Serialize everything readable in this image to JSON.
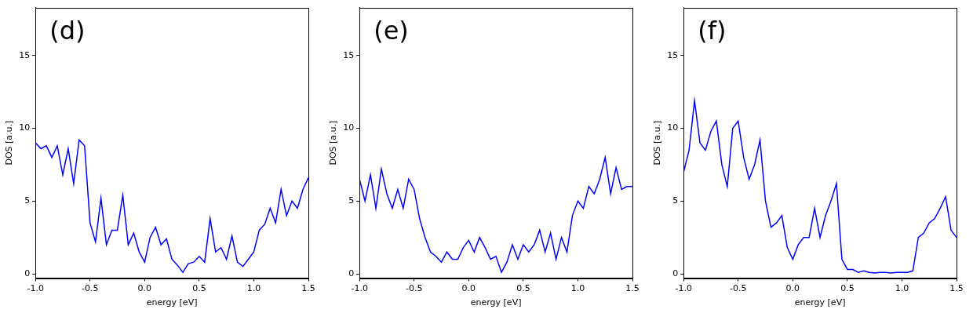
{
  "chart_data": [
    {
      "type": "line",
      "title": "(d)",
      "xlabel": "energy [eV]",
      "ylabel": "DOS [a.u.]",
      "color": "#0000ff",
      "x": [
        -1.0,
        -0.95,
        -0.9,
        -0.85,
        -0.8,
        -0.75,
        -0.7,
        -0.65,
        -0.6,
        -0.55,
        -0.5,
        -0.45,
        -0.4,
        -0.35,
        -0.3,
        -0.25,
        -0.2,
        -0.15,
        -0.1,
        -0.05,
        0.0,
        0.05,
        0.1,
        0.15,
        0.2,
        0.25,
        0.3,
        0.35,
        0.4,
        0.45,
        0.5,
        0.55,
        0.6,
        0.65,
        0.7,
        0.75,
        0.8,
        0.85,
        0.9,
        0.95,
        1.0,
        1.05,
        1.1,
        1.15,
        1.2,
        1.25,
        1.3,
        1.35,
        1.4,
        1.45,
        1.5
      ],
      "values": [
        9.0,
        8.6,
        8.8,
        8.0,
        8.8,
        6.8,
        8.6,
        6.2,
        9.2,
        8.8,
        3.5,
        2.2,
        5.2,
        2.0,
        3.0,
        3.0,
        5.4,
        2.0,
        2.8,
        1.5,
        0.8,
        2.5,
        3.2,
        2.0,
        2.4,
        1.0,
        0.6,
        0.1,
        0.7,
        0.8,
        1.2,
        0.8,
        3.8,
        1.5,
        1.8,
        1.0,
        2.6,
        0.8,
        0.5,
        1.0,
        1.5,
        3.0,
        3.4,
        4.5,
        3.5,
        5.8,
        4.0,
        5.0,
        4.5,
        5.8,
        6.6
      ],
      "xlim": [
        -1.0,
        1.5
      ],
      "ylim": [
        -0.3,
        18.3
      ],
      "xticks": [
        {
          "value": -1.0,
          "label": "-1.0"
        },
        {
          "value": -0.5,
          "label": "-0.5"
        },
        {
          "value": 0.0,
          "label": "0.0"
        },
        {
          "value": 0.5,
          "label": "0.5"
        },
        {
          "value": 1.0,
          "label": "1.0"
        },
        {
          "value": 1.5,
          "label": "1.5"
        }
      ],
      "yticks": [
        0,
        5,
        10,
        15
      ],
      "grid": false
    },
    {
      "type": "line",
      "title": "(e)",
      "xlabel": "energy [eV]",
      "ylabel": "DOS [a.u.]",
      "color": "#0000ff",
      "x": [
        -1.0,
        -0.95,
        -0.9,
        -0.85,
        -0.8,
        -0.75,
        -0.7,
        -0.65,
        -0.6,
        -0.55,
        -0.5,
        -0.45,
        -0.4,
        -0.35,
        -0.3,
        -0.25,
        -0.2,
        -0.15,
        -0.1,
        -0.05,
        0.0,
        0.05,
        0.1,
        0.15,
        0.2,
        0.25,
        0.3,
        0.35,
        0.4,
        0.45,
        0.5,
        0.55,
        0.6,
        0.65,
        0.7,
        0.75,
        0.8,
        0.85,
        0.9,
        0.95,
        1.0,
        1.05,
        1.1,
        1.15,
        1.2,
        1.25,
        1.3,
        1.35,
        1.4,
        1.45,
        1.5
      ],
      "values": [
        6.5,
        5.0,
        6.8,
        4.5,
        7.2,
        5.5,
        4.5,
        5.8,
        4.5,
        6.5,
        5.8,
        3.8,
        2.5,
        1.5,
        1.2,
        0.8,
        1.5,
        1.0,
        1.0,
        1.8,
        2.3,
        1.5,
        2.5,
        1.8,
        1.0,
        1.2,
        0.1,
        0.8,
        2.0,
        1.0,
        2.0,
        1.5,
        2.0,
        3.0,
        1.5,
        2.8,
        1.0,
        2.5,
        1.5,
        4.0,
        5.0,
        4.5,
        6.0,
        5.5,
        6.5,
        8.0,
        5.5,
        7.3,
        5.8,
        6.0,
        6.0
      ],
      "xlim": [
        -1.0,
        1.5
      ],
      "ylim": [
        -0.3,
        18.3
      ],
      "xticks": [
        {
          "value": -1.0,
          "label": "-1.0"
        },
        {
          "value": -0.5,
          "label": "-0.5"
        },
        {
          "value": 0.0,
          "label": "0.0"
        },
        {
          "value": 0.5,
          "label": "0.5"
        },
        {
          "value": 1.0,
          "label": "1.0"
        },
        {
          "value": 1.5,
          "label": "1.5"
        }
      ],
      "yticks": [
        0,
        5,
        10,
        15
      ],
      "grid": false
    },
    {
      "type": "line",
      "title": "(f)",
      "xlabel": "energy [eV]",
      "ylabel": "DOS [a.u.]",
      "color": "#0000ff",
      "x": [
        -1.0,
        -0.95,
        -0.9,
        -0.85,
        -0.8,
        -0.75,
        -0.7,
        -0.65,
        -0.6,
        -0.55,
        -0.5,
        -0.45,
        -0.4,
        -0.35,
        -0.3,
        -0.25,
        -0.2,
        -0.15,
        -0.1,
        -0.05,
        0.0,
        0.05,
        0.1,
        0.15,
        0.2,
        0.25,
        0.3,
        0.35,
        0.4,
        0.45,
        0.5,
        0.55,
        0.6,
        0.65,
        0.7,
        0.75,
        0.8,
        0.85,
        0.9,
        0.95,
        1.0,
        1.05,
        1.1,
        1.15,
        1.2,
        1.25,
        1.3,
        1.35,
        1.4,
        1.45,
        1.5
      ],
      "values": [
        7.0,
        8.5,
        11.9,
        9.0,
        8.5,
        9.8,
        10.5,
        7.5,
        6.0,
        10.0,
        10.5,
        8.0,
        6.5,
        7.5,
        9.2,
        5.0,
        3.2,
        3.5,
        4.0,
        1.8,
        1.0,
        2.0,
        2.5,
        2.5,
        4.5,
        2.5,
        4.0,
        5.0,
        6.2,
        1.0,
        0.3,
        0.3,
        0.1,
        0.2,
        0.1,
        0.05,
        0.1,
        0.1,
        0.05,
        0.1,
        0.1,
        0.1,
        0.2,
        2.5,
        2.8,
        3.5,
        3.8,
        4.5,
        5.3,
        3.0,
        2.5
      ],
      "xlim": [
        -1.0,
        1.5
      ],
      "ylim": [
        -0.3,
        18.3
      ],
      "xticks": [
        {
          "value": -1.0,
          "label": "-1.0"
        },
        {
          "value": -0.5,
          "label": "-0.5"
        },
        {
          "value": 0.0,
          "label": "0.0"
        },
        {
          "value": 0.5,
          "label": "0.5"
        },
        {
          "value": 1.0,
          "label": "1.0"
        },
        {
          "value": 1.5,
          "label": "1.5"
        }
      ],
      "yticks": [
        0,
        5,
        10,
        15
      ],
      "grid": false
    }
  ]
}
